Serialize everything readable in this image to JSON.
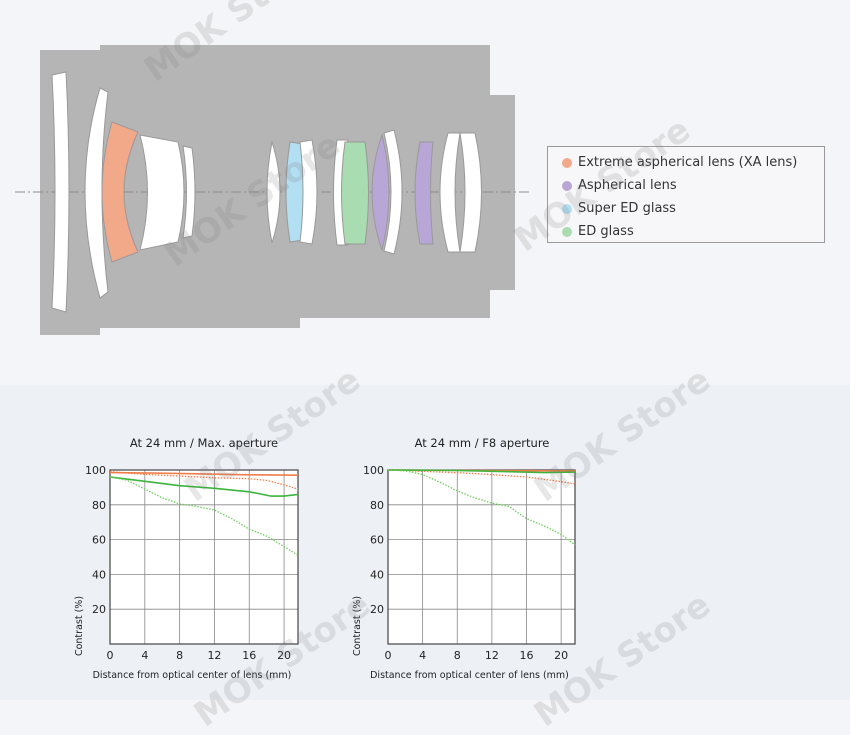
{
  "legend": {
    "items": [
      {
        "label": "Extreme aspherical lens (XA lens)",
        "color": "#f2a98a"
      },
      {
        "label": "Aspherical lens",
        "color": "#b8a6d6"
      },
      {
        "label": "Super ED glass",
        "color": "#b3dff3"
      },
      {
        "label": "ED glass",
        "color": "#a9dcb0"
      }
    ]
  },
  "watermark": "MOK Store",
  "chart_data": [
    {
      "type": "line",
      "title": "At 24 mm / Max. aperture",
      "xlabel": "Distance from optical center of lens (mm)",
      "ylabel": "Contrast (%)",
      "xlim": [
        0,
        21.6
      ],
      "ylim": [
        0,
        100
      ],
      "xticks": [
        0,
        4,
        8,
        12,
        16,
        20
      ],
      "yticks": [
        20,
        40,
        60,
        80,
        100
      ],
      "grid": true,
      "series": [
        {
          "color": "#f07d4a",
          "style": "solid",
          "x": [
            0,
            5,
            10,
            15,
            21.6
          ],
          "y": [
            98.5,
            98.2,
            97.8,
            97.3,
            97
          ]
        },
        {
          "color": "#f07d4a",
          "style": "dotted",
          "x": [
            0,
            4,
            8,
            12,
            16,
            18,
            20,
            21.6
          ],
          "y": [
            99,
            97.5,
            96.5,
            95.5,
            95,
            94,
            91.5,
            89
          ]
        },
        {
          "color": "#3db53d",
          "style": "solid",
          "x": [
            0,
            4,
            8,
            12,
            16,
            18.5,
            20,
            21.6
          ],
          "y": [
            96,
            93.5,
            91,
            89.5,
            87.5,
            85,
            85,
            86
          ]
        },
        {
          "color": "#6ccf5c",
          "style": "dotted",
          "x": [
            0,
            2,
            4,
            6,
            8,
            10,
            12,
            14,
            16,
            18,
            20,
            21.6
          ],
          "y": [
            96,
            94,
            89,
            84,
            80.5,
            79,
            77,
            72,
            66,
            62,
            56,
            51
          ]
        }
      ]
    },
    {
      "type": "line",
      "title": "At 24 mm / F8 aperture",
      "xlabel": "Distance from optical center of lens (mm)",
      "ylabel": "Contrast (%)",
      "xlim": [
        0,
        21.6
      ],
      "ylim": [
        0,
        100
      ],
      "xticks": [
        0,
        4,
        8,
        12,
        16,
        20
      ],
      "yticks": [
        20,
        40,
        60,
        80,
        100
      ],
      "grid": true,
      "series": [
        {
          "color": "#f07d4a",
          "style": "solid",
          "x": [
            0,
            10,
            21.6
          ],
          "y": [
            100,
            99.7,
            99.5
          ]
        },
        {
          "color": "#f07d4a",
          "style": "dotted",
          "x": [
            0,
            5,
            10,
            16,
            19,
            21.6
          ],
          "y": [
            100,
            99,
            98,
            96,
            94,
            92
          ]
        },
        {
          "color": "#3db53d",
          "style": "solid",
          "x": [
            0,
            8,
            14,
            18,
            21.6
          ],
          "y": [
            100,
            99.7,
            99,
            98.5,
            98.8
          ]
        },
        {
          "color": "#6ccf5c",
          "style": "dotted",
          "x": [
            0,
            2,
            4,
            6,
            8,
            10,
            12,
            14,
            16,
            18,
            20,
            21.6
          ],
          "y": [
            100,
            99.5,
            97.5,
            93,
            88,
            84,
            81,
            79,
            72,
            68,
            63,
            57
          ]
        }
      ]
    }
  ]
}
